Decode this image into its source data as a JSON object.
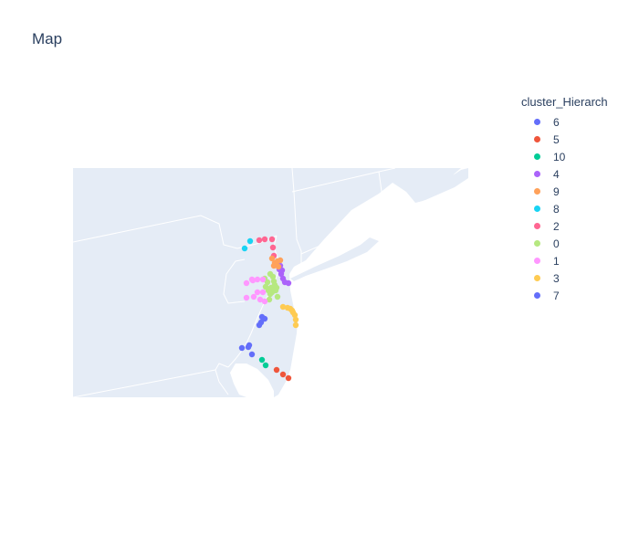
{
  "title": "Map",
  "legend": {
    "title": "cluster_Hierarch",
    "items": [
      {
        "label": "6",
        "color": "#636efa"
      },
      {
        "label": "5",
        "color": "#EF553B"
      },
      {
        "label": "10",
        "color": "#00cc96"
      },
      {
        "label": "4",
        "color": "#ab63fa"
      },
      {
        "label": "9",
        "color": "#FFA15A"
      },
      {
        "label": "8",
        "color": "#19d3f3"
      },
      {
        "label": "2",
        "color": "#FF6692"
      },
      {
        "label": "0",
        "color": "#B6E880"
      },
      {
        "label": "1",
        "color": "#FF97FF"
      },
      {
        "label": "3",
        "color": "#FECB52"
      },
      {
        "label": "7",
        "color": "#636efa"
      }
    ]
  },
  "colors": {
    "land": "#e5ecf6",
    "border": "#ffffff",
    "text": "#2a3f5f"
  }
}
